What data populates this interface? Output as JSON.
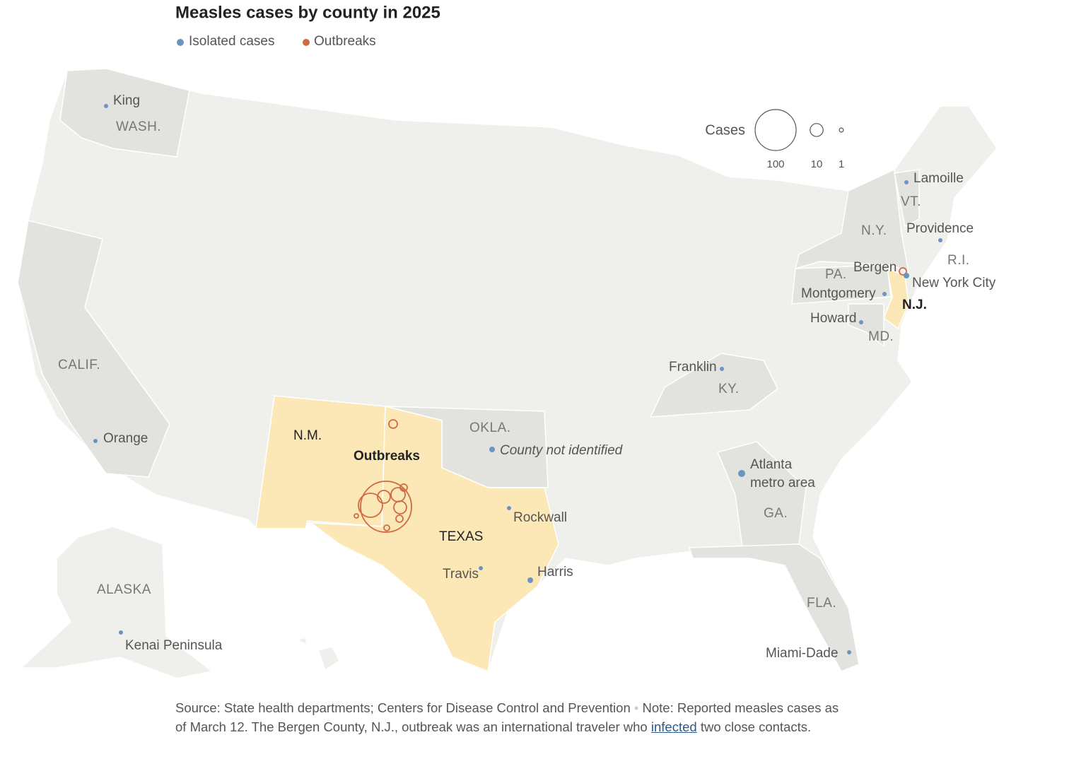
{
  "title": "Measles cases by county in 2025",
  "legend": {
    "isolated": "Isolated cases",
    "outbreaks": "Outbreaks"
  },
  "size_legend": {
    "label": "Cases",
    "sizes": [
      100,
      10,
      1
    ]
  },
  "state_labels": [
    "WASH.",
    "CALIF.",
    "N.M.",
    "OKLA.",
    "TEXAS",
    "KY.",
    "GA.",
    "FLA.",
    "N.Y.",
    "VT.",
    "PA.",
    "MD.",
    "N.J.",
    "R.I.",
    "ALASKA"
  ],
  "places": [
    "King",
    "Orange",
    "County not identified",
    "Rockwall",
    "Travis",
    "Harris",
    "Franklin",
    "Atlanta",
    "metro area",
    "Miami-Dade",
    "Lamoille",
    "Providence",
    "Bergen",
    "New York City",
    "Montgomery",
    "Howard",
    "Kenai Peninsula"
  ],
  "outbreak_label": "Outbreaks",
  "footer": {
    "source": "Source: State health departments; Centers for Disease Control and Prevention",
    "note_before": "Note: Reported measles cases as of March 12. The Bergen County, N.J., outbreak was an international traveler who",
    "link": "infected",
    "note_after": "two close contacts."
  }
}
